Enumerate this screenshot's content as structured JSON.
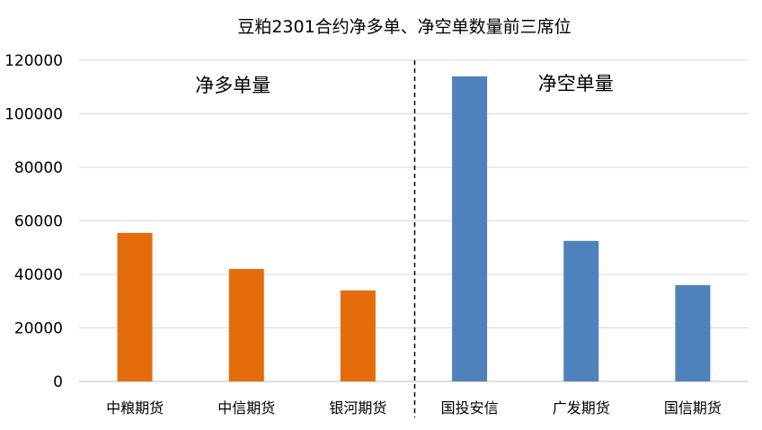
{
  "chart_data": {
    "type": "bar",
    "title": "豆粕2301合约净多单、净空单数量前三席位",
    "xlabel": "",
    "ylabel": "",
    "ylim": [
      0,
      120000
    ],
    "yticks": [
      0,
      20000,
      40000,
      60000,
      80000,
      100000,
      120000
    ],
    "grid": true,
    "legend": "none",
    "categories": [
      "中粮期货",
      "中信期货",
      "银河期货",
      "国投安信",
      "广发期货",
      "国信期货"
    ],
    "values": [
      55500,
      42000,
      34000,
      114000,
      52500,
      36000
    ],
    "bar_colors": [
      "#E46C0A",
      "#E46C0A",
      "#E46C0A",
      "#4F81BD",
      "#4F81BD",
      "#4F81BD"
    ],
    "groups": [
      {
        "label": "净多单量",
        "categories": [
          "中粮期货",
          "中信期货",
          "银河期货"
        ],
        "color": "#E46C0A"
      },
      {
        "label": "净空单量",
        "categories": [
          "国投安信",
          "广发期货",
          "国信期货"
        ],
        "color": "#4F81BD"
      }
    ],
    "divider": "dashed vertical line between 银河期货 and 国投安信"
  }
}
